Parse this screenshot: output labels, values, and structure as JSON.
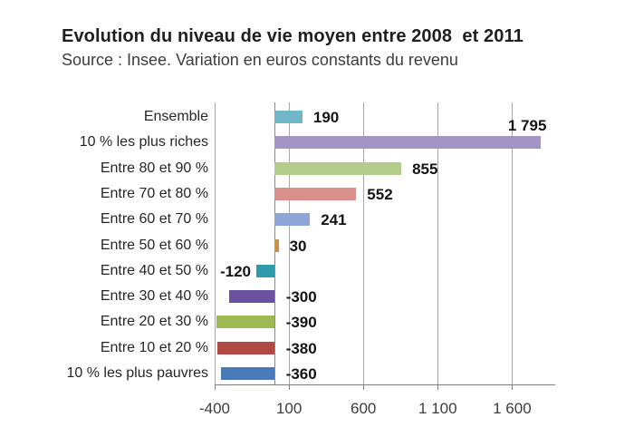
{
  "chart_data": {
    "type": "bar",
    "orientation": "horizontal",
    "title": "Evolution du niveau de vie moyen entre 2008  et 2011",
    "subtitle": "Source : Insee. Variation en euros constants du revenu",
    "xlabel": "",
    "ylabel": "",
    "xlim": [
      -400,
      1890
    ],
    "grid": true,
    "legend": "none",
    "x_ticks": [
      {
        "value": -400,
        "label": "-400"
      },
      {
        "value": 100,
        "label": "100"
      },
      {
        "value": 600,
        "label": "600"
      },
      {
        "value": 1100,
        "label": "1 100"
      },
      {
        "value": 1600,
        "label": "1 600"
      }
    ],
    "rows": [
      {
        "category": "Ensemble",
        "value": 190,
        "display": "190",
        "color": "#6fb6c9",
        "label_position": "right"
      },
      {
        "category": "10 % les plus riches",
        "value": 1795,
        "display": "1 795",
        "color": "#a394c6",
        "label_position": "above_end"
      },
      {
        "category": "Entre 80 et 90 %",
        "value": 855,
        "display": "855",
        "color": "#b3cc8a",
        "label_position": "right"
      },
      {
        "category": "Entre 70 et 80 %",
        "value": 552,
        "display": "552",
        "color": "#d9908c",
        "label_position": "right"
      },
      {
        "category": "Entre 60 et 70 %",
        "value": 241,
        "display": "241",
        "color": "#8da6d5",
        "label_position": "right"
      },
      {
        "category": "Entre 50 et 60 %",
        "value": 30,
        "display": "30",
        "color": "#d28e41",
        "label_position": "right"
      },
      {
        "category": "Entre 40 et 50 %",
        "value": -120,
        "display": "-120",
        "color": "#2e9aab",
        "label_position": "left_of_bar"
      },
      {
        "category": "Entre 30 et 40 %",
        "value": -300,
        "display": "-300",
        "color": "#6a52a0",
        "label_position": "zero_right"
      },
      {
        "category": "Entre 20 et 30 %",
        "value": -390,
        "display": "-390",
        "color": "#9cb953",
        "label_position": "zero_right"
      },
      {
        "category": "Entre 10 et 20 %",
        "value": -380,
        "display": "-380",
        "color": "#b14a45",
        "label_position": "zero_right"
      },
      {
        "category": "10 % les plus pauvres",
        "value": -360,
        "display": "-360",
        "color": "#4a7ab8",
        "label_position": "zero_right"
      }
    ],
    "colors": {
      "background": "#ffffff",
      "gridline": "#a8a8a8",
      "zero_line": "#8a8a8a",
      "axis_line": "#808080",
      "title_text": "#1f1f1f",
      "subtitle_text": "#3d3d3d",
      "category_text": "#262626",
      "value_text": "#141414",
      "tick_text": "#3d3d3d"
    }
  }
}
